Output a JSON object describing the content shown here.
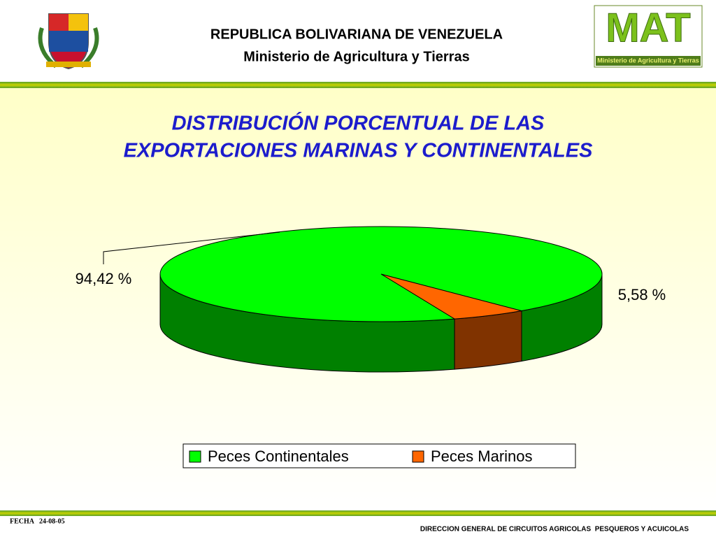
{
  "header": {
    "line1": "REPUBLICA BOLIVARIANA DE VENEZUELA",
    "line2": "Ministerio de Agricultura y Tierras",
    "logo_text": "MAT",
    "logo_caption": "Ministerio de Agricultura y Tierras"
  },
  "chart_data": {
    "type": "pie",
    "title": [
      "DISTRIBUCIÓN PORCENTUAL DE LAS",
      "EXPORTACIONES MARINAS Y CONTINENTALES"
    ],
    "categories": [
      "Peces Continentales",
      "Peces Marinos"
    ],
    "values": [
      94.42,
      5.58
    ],
    "value_labels": [
      "94,42 %",
      "5,58 %"
    ],
    "colors": [
      "#00ff00",
      "#ff6600"
    ],
    "legend": "bottom"
  },
  "footer": {
    "date": "FECHA   24-08-05",
    "department": "DIRECCION GENERAL DE CIRCUITOS AGRICOLAS  PESQUEROS Y ACUICOLAS"
  }
}
